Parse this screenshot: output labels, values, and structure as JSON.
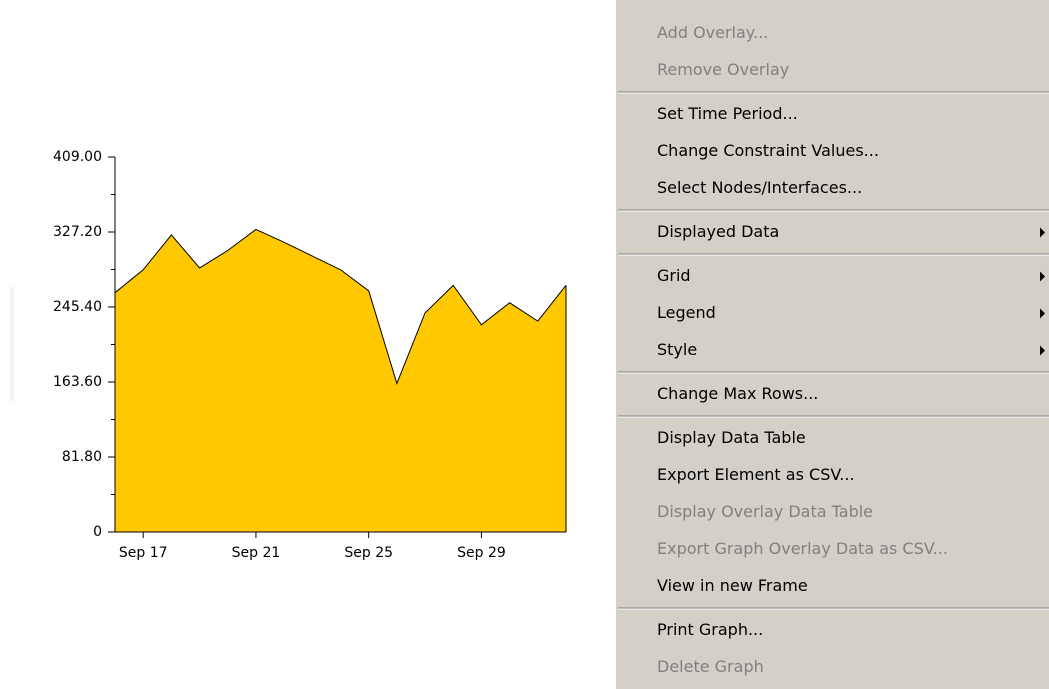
{
  "chart_data": {
    "type": "area",
    "color": "#ffc800",
    "categories": [
      null,
      "Sep 17",
      null,
      null,
      null,
      "Sep 21",
      null,
      null,
      null,
      "Sep 25",
      null,
      null,
      null,
      "Sep 29",
      null,
      null,
      null
    ],
    "values": [
      261,
      286,
      324,
      288,
      307,
      330,
      316,
      301,
      286,
      263,
      162,
      239,
      269,
      226,
      250,
      230,
      269
    ],
    "ylim": [
      0,
      409
    ],
    "yticks": [
      0,
      {
        "value": 81.8,
        "label": "81.80"
      },
      {
        "value": 163.6,
        "label": "163.60"
      },
      {
        "value": 245.4,
        "label": "245.40"
      },
      {
        "value": 327.2,
        "label": "327.20"
      },
      {
        "value": 409,
        "label": "409.00"
      }
    ]
  },
  "menu": {
    "groups": [
      [
        {
          "label": "Add Overlay...",
          "enabled": false
        },
        {
          "label": "Remove Overlay",
          "enabled": false
        }
      ],
      [
        {
          "label": "Set Time Period...",
          "enabled": true
        },
        {
          "label": "Change Constraint Values...",
          "enabled": true
        },
        {
          "label": "Select Nodes/Interfaces...",
          "enabled": true
        }
      ],
      [
        {
          "label": "Displayed Data",
          "enabled": true,
          "submenu": true
        }
      ],
      [
        {
          "label": "Grid",
          "enabled": true,
          "submenu": true
        },
        {
          "label": "Legend",
          "enabled": true,
          "submenu": true
        },
        {
          "label": "Style",
          "enabled": true,
          "submenu": true
        }
      ],
      [
        {
          "label": "Change Max Rows...",
          "enabled": true
        }
      ],
      [
        {
          "label": "Display Data Table",
          "enabled": true
        },
        {
          "label": "Export Element as CSV...",
          "enabled": true
        },
        {
          "label": "Display Overlay Data Table",
          "enabled": false
        },
        {
          "label": "Export Graph Overlay Data as CSV...",
          "enabled": false
        },
        {
          "label": "View in new Frame",
          "enabled": true
        }
      ],
      [
        {
          "label": "Print Graph...",
          "enabled": true
        },
        {
          "label": "Delete Graph",
          "enabled": false
        }
      ]
    ]
  }
}
